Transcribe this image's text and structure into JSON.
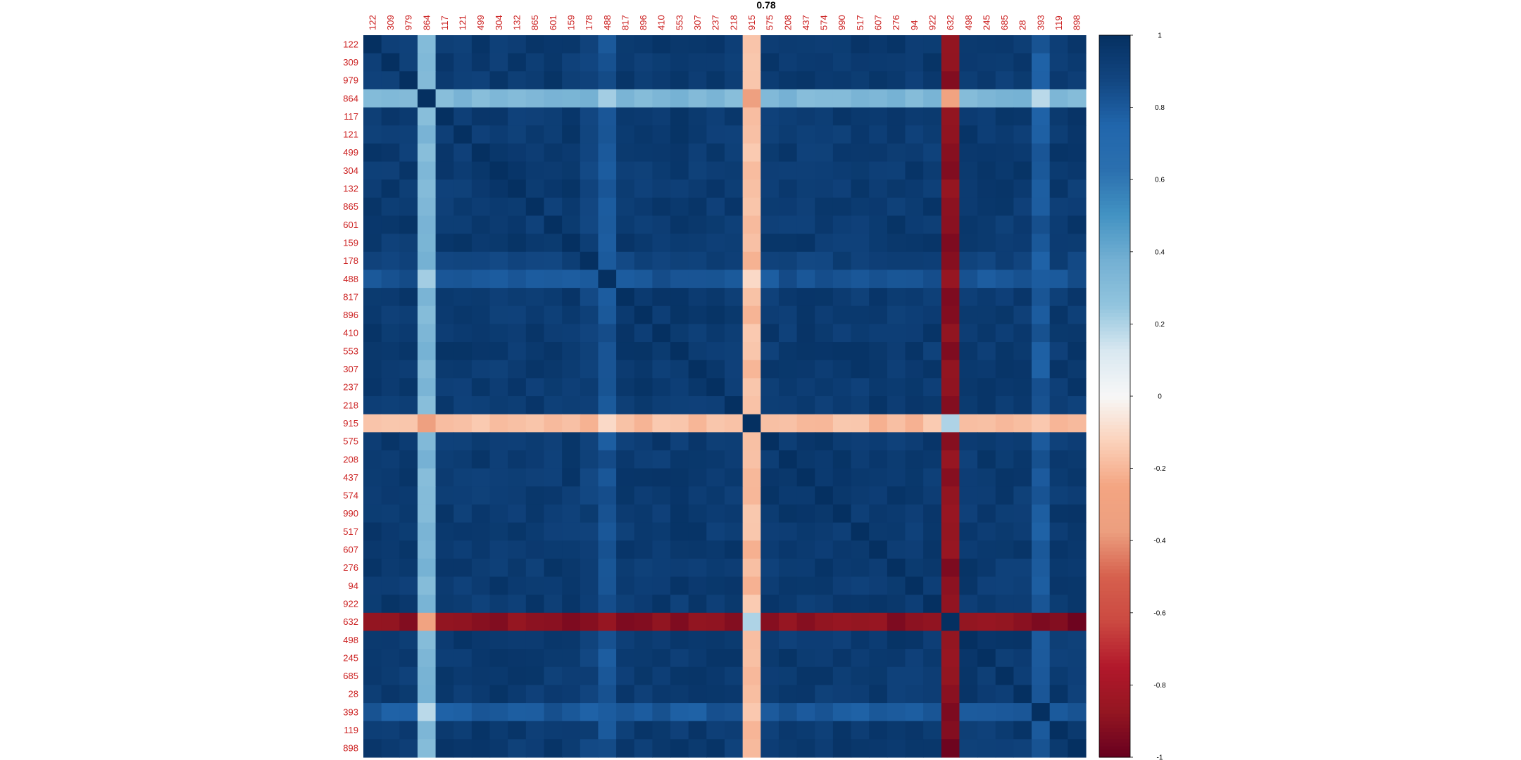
{
  "chart_data": {
    "type": "heatmap",
    "title": "0.78",
    "labels": [
      "122",
      "309",
      "979",
      "864",
      "117",
      "121",
      "499",
      "304",
      "132",
      "865",
      "601",
      "159",
      "178",
      "488",
      "817",
      "896",
      "410",
      "553",
      "307",
      "237",
      "218",
      "915",
      "575",
      "208",
      "437",
      "574",
      "990",
      "517",
      "607",
      "276",
      "94",
      "922",
      "632",
      "498",
      "245",
      "685",
      "28",
      "393",
      "119",
      "898"
    ],
    "label_color": "#cc2222",
    "colorbar": {
      "ticks": [
        1,
        0.8,
        0.6,
        0.4,
        0.2,
        0,
        -0.2,
        -0.4,
        -0.6,
        -0.8,
        -1
      ],
      "range": [
        -1,
        1
      ]
    },
    "colorscale": {
      "stops": [
        -1,
        -0.875,
        -0.75,
        -0.625,
        -0.5,
        -0.375,
        -0.25,
        -0.125,
        0,
        0.125,
        0.25,
        0.375,
        0.5,
        0.625,
        0.75,
        0.875,
        1
      ],
      "colors": [
        "#67001f",
        "#941621",
        "#b2182b",
        "#cb4941",
        "#d6604d",
        "#ec9f7f",
        "#f4a582",
        "#fbd2bb",
        "#f7f7f7",
        "#d9e8f1",
        "#92c5de",
        "#74b0d3",
        "#4393c3",
        "#2b70af",
        "#2166ac",
        "#124681",
        "#053061"
      ]
    },
    "base_correlation": 0.94,
    "anomalous_rows": [
      {
        "label": "864",
        "corr_with_others": 0.33
      },
      {
        "label": "915",
        "corr_with_others": -0.18
      },
      {
        "label": "632",
        "corr_with_others": -0.9
      },
      {
        "label": "488",
        "corr_with_others": 0.82
      },
      {
        "label": "393",
        "corr_with_others": 0.8
      },
      {
        "label": "178",
        "corr_with_others": 0.9
      }
    ],
    "pair_overrides": [
      {
        "a": "864",
        "b": "915",
        "value": -0.35
      },
      {
        "a": "864",
        "b": "632",
        "value": -0.3
      },
      {
        "a": "915",
        "b": "632",
        "value": 0.2
      },
      {
        "a": "864",
        "b": "488",
        "value": 0.22
      },
      {
        "a": "864",
        "b": "393",
        "value": 0.18
      },
      {
        "a": "915",
        "b": "488",
        "value": -0.1
      },
      {
        "a": "632",
        "b": "898",
        "value": -0.98
      }
    ]
  }
}
